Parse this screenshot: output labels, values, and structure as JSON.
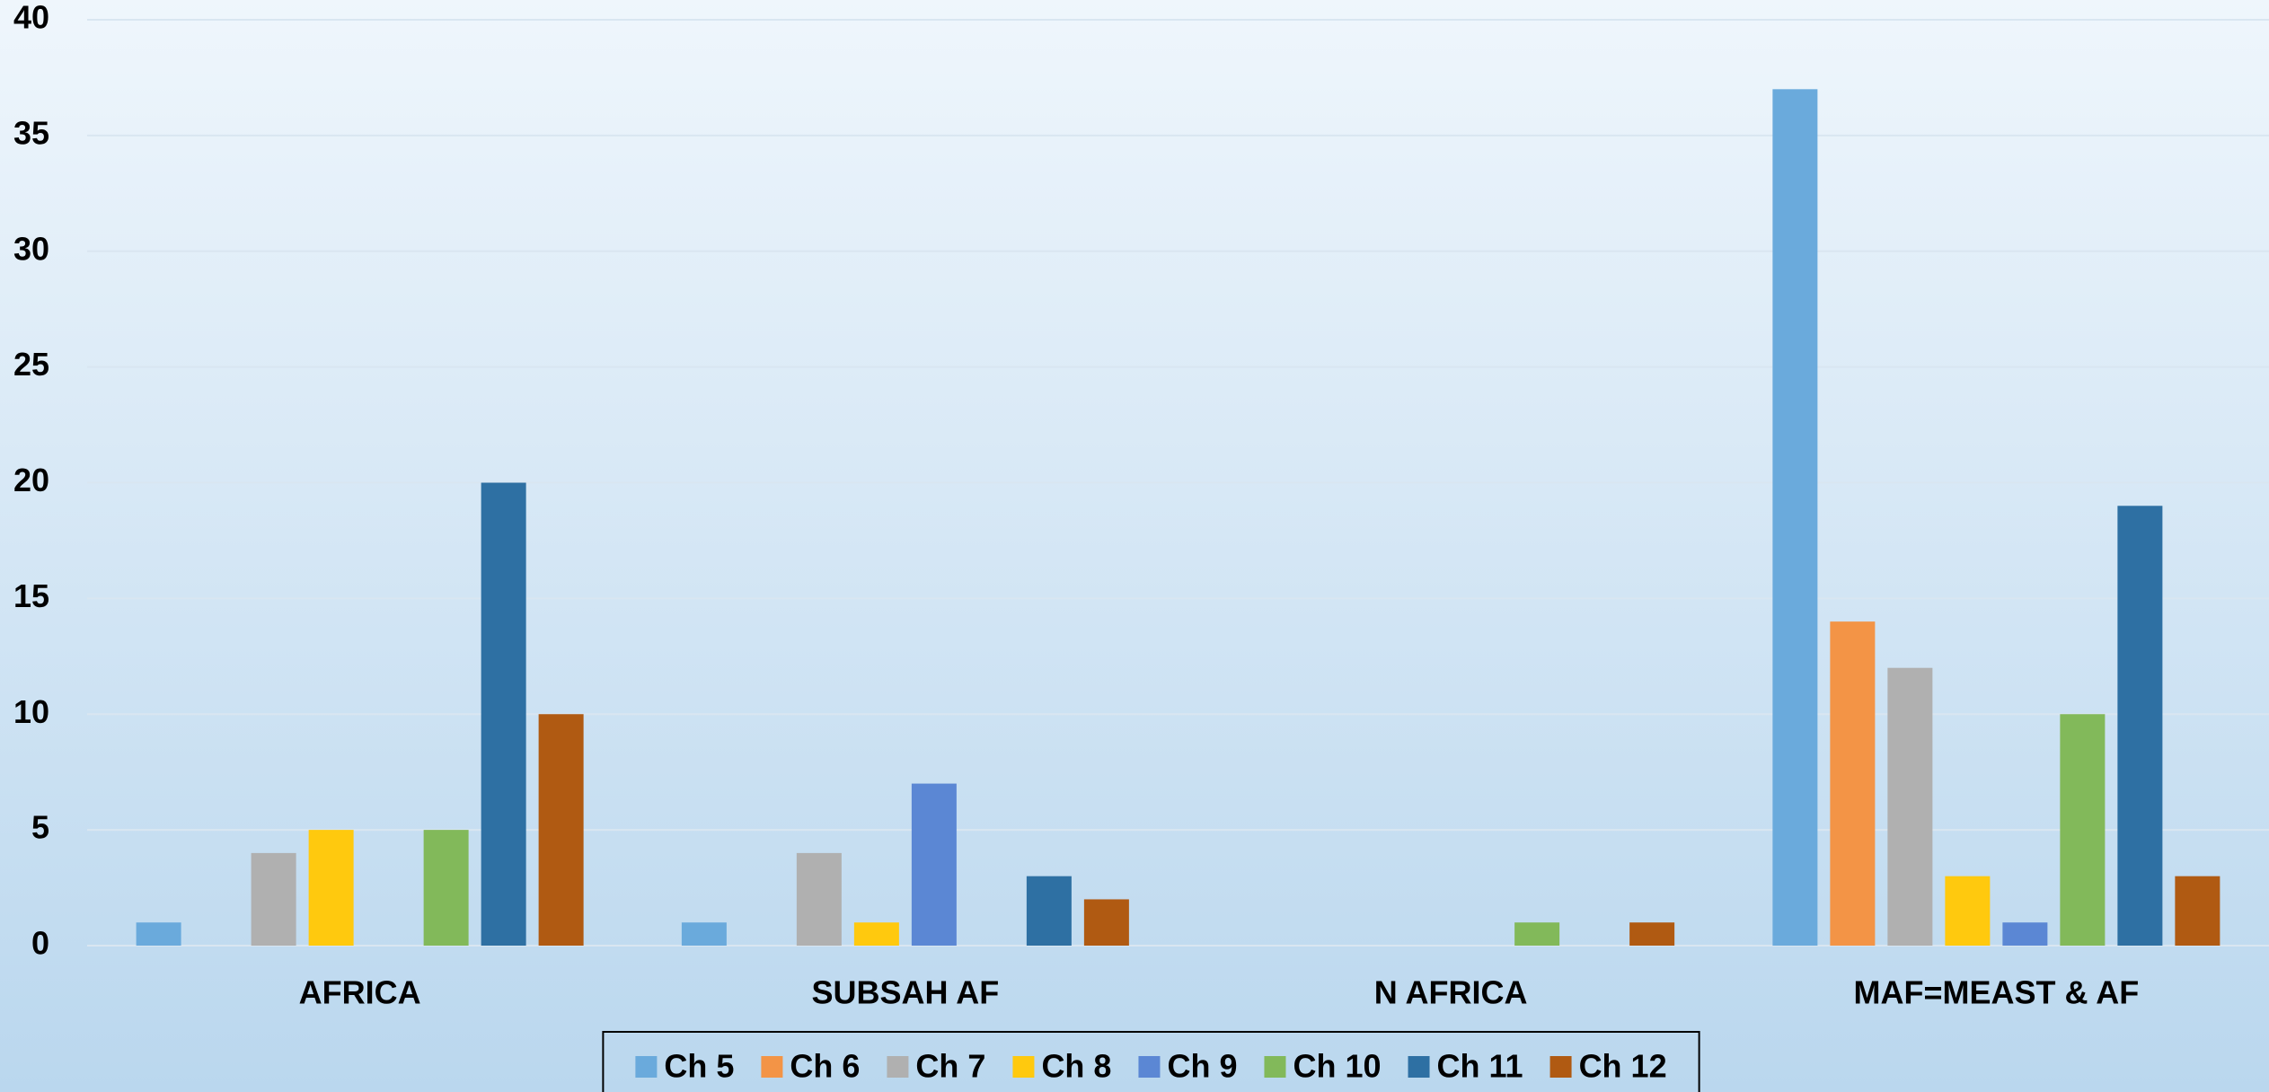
{
  "chart_data": {
    "type": "bar",
    "categories": [
      "AFRICA",
      "SUBSAH AF",
      "N AFRICA",
      "MAF=MEAST & AF"
    ],
    "series": [
      {
        "name": "Ch 5",
        "color": "#6aaadc",
        "values": [
          1,
          1,
          0,
          37
        ]
      },
      {
        "name": "Ch 6",
        "color": "#f39446",
        "values": [
          0,
          0,
          0,
          14
        ]
      },
      {
        "name": "Ch 7",
        "color": "#b0b0b0",
        "values": [
          4,
          4,
          0,
          12
        ]
      },
      {
        "name": "Ch 8",
        "color": "#ffc90e",
        "values": [
          5,
          1,
          0,
          3
        ]
      },
      {
        "name": "Ch 9",
        "color": "#5b87d4",
        "values": [
          0,
          7,
          0,
          1
        ]
      },
      {
        "name": "Ch 10",
        "color": "#82b95a",
        "values": [
          5,
          0,
          1,
          10
        ]
      },
      {
        "name": "Ch 11",
        "color": "#2e70a3",
        "values": [
          20,
          3,
          0,
          19
        ]
      },
      {
        "name": "Ch 12",
        "color": "#b05a12",
        "values": [
          10,
          2,
          1,
          3
        ]
      }
    ],
    "ylim": [
      0,
      40
    ],
    "yticks": [
      0,
      5,
      10,
      15,
      20,
      25,
      30,
      35,
      40
    ],
    "grid": true,
    "legend": "bottom"
  }
}
